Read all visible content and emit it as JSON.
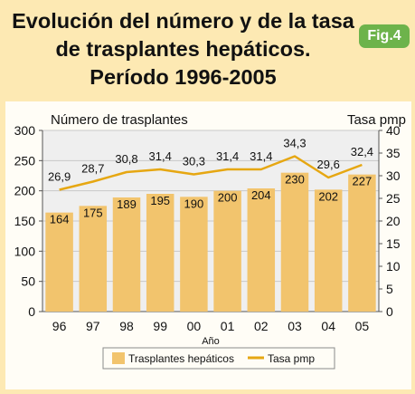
{
  "header": {
    "title_lines": [
      "Evolución del número y de la tasa",
      "de trasplantes hepáticos.",
      "Período 1996-2005"
    ],
    "badge": "Fig.4"
  },
  "chart_data": {
    "type": "bar",
    "categories": [
      "96",
      "97",
      "98",
      "99",
      "00",
      "01",
      "02",
      "03",
      "04",
      "05"
    ],
    "series": [
      {
        "name": "Trasplantes hepáticos",
        "type": "bar",
        "axis": "left",
        "values": [
          164,
          175,
          189,
          195,
          190,
          200,
          204,
          230,
          202,
          227
        ],
        "labels": [
          "164",
          "175",
          "189",
          "195",
          "190",
          "200",
          "204",
          "230",
          "202",
          "227"
        ]
      },
      {
        "name": "Tasa pmp",
        "type": "line",
        "axis": "right",
        "values": [
          26.9,
          28.7,
          30.8,
          31.4,
          30.3,
          31.4,
          31.4,
          34.3,
          29.6,
          32.4
        ],
        "labels": [
          "26,9",
          "28,7",
          "30,8",
          "31,4",
          "30,3",
          "31,4",
          "31,4",
          "34,3",
          "29,6",
          "32,4"
        ]
      }
    ],
    "ylabel": "Número de trasplantes",
    "y2label": "Tasa pmp",
    "xlabel": "Año",
    "ylim": [
      0,
      300
    ],
    "y2lim": [
      0,
      40
    ],
    "yticks": [
      0,
      50,
      100,
      150,
      200,
      250,
      300
    ],
    "y2ticks": [
      0,
      5,
      10,
      15,
      20,
      25,
      30,
      35,
      40
    ],
    "grid": true,
    "legend_position": "bottom",
    "colors": {
      "bar": "#f2c46d",
      "line": "#e6a712",
      "grid": "#c8c8c8",
      "plot_bg": "#efefef"
    }
  }
}
